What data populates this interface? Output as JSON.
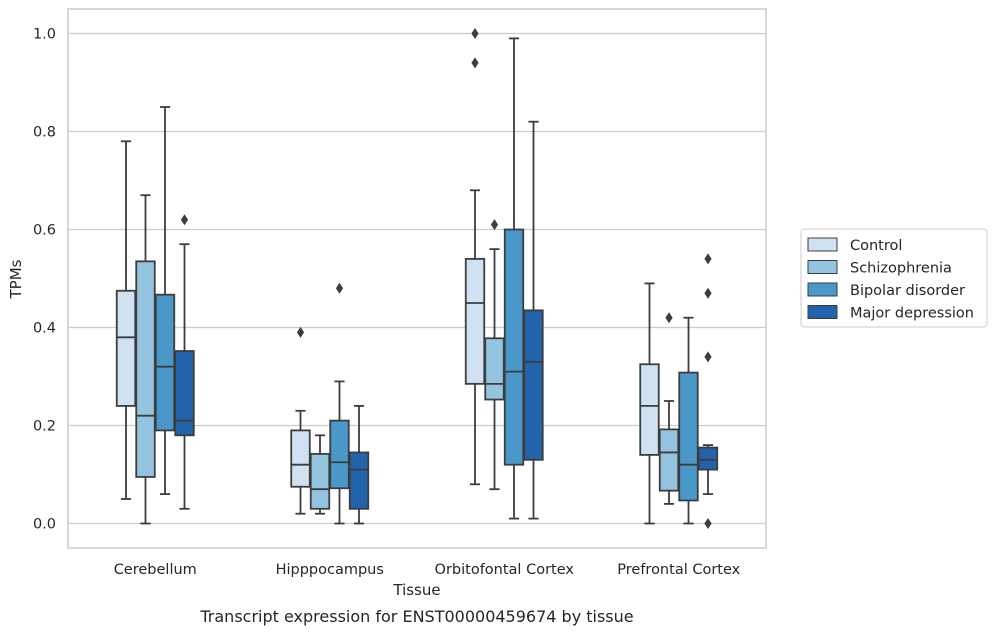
{
  "chart_data": {
    "type": "box",
    "title": "",
    "caption": "Transcript expression for ENST00000459674 by tissue",
    "xlabel": "Tissue",
    "ylabel": "TPMs",
    "ylim": [
      -0.05,
      1.05
    ],
    "yticks": [
      "0.0",
      "0.2",
      "0.4",
      "0.6",
      "0.8",
      "1.0"
    ],
    "grid": "horizontal",
    "legend_position": "right",
    "categories": [
      "Cerebellum",
      "Hipppocampus",
      "Orbitofontal Cortex",
      "Prefrontal Cortex"
    ],
    "series": [
      {
        "name": "Control",
        "color": "#d0e1f2",
        "boxes": [
          {
            "whisker_low": 0.05,
            "q1": 0.24,
            "median": 0.38,
            "q3": 0.475,
            "whisker_high": 0.78,
            "outliers": []
          },
          {
            "whisker_low": 0.02,
            "q1": 0.075,
            "median": 0.12,
            "q3": 0.19,
            "whisker_high": 0.23,
            "outliers": [
              0.39
            ]
          },
          {
            "whisker_low": 0.08,
            "q1": 0.285,
            "median": 0.45,
            "q3": 0.54,
            "whisker_high": 0.68,
            "outliers": [
              0.94,
              1.0
            ]
          },
          {
            "whisker_low": 0.0,
            "q1": 0.14,
            "median": 0.24,
            "q3": 0.325,
            "whisker_high": 0.49,
            "outliers": []
          }
        ]
      },
      {
        "name": "Schizophrenia",
        "color": "#94c4df",
        "boxes": [
          {
            "whisker_low": 0.0,
            "q1": 0.095,
            "median": 0.22,
            "q3": 0.535,
            "whisker_high": 0.67,
            "outliers": []
          },
          {
            "whisker_low": 0.02,
            "q1": 0.03,
            "median": 0.07,
            "q3": 0.142,
            "whisker_high": 0.18,
            "outliers": []
          },
          {
            "whisker_low": 0.07,
            "q1": 0.253,
            "median": 0.285,
            "q3": 0.378,
            "whisker_high": 0.56,
            "outliers": [
              0.61
            ]
          },
          {
            "whisker_low": 0.04,
            "q1": 0.067,
            "median": 0.145,
            "q3": 0.192,
            "whisker_high": 0.25,
            "outliers": [
              0.42
            ]
          }
        ]
      },
      {
        "name": "Bipolar disorder",
        "color": "#4a98c9",
        "boxes": [
          {
            "whisker_low": 0.06,
            "q1": 0.19,
            "median": 0.32,
            "q3": 0.467,
            "whisker_high": 0.85,
            "outliers": []
          },
          {
            "whisker_low": 0.0,
            "q1": 0.072,
            "median": 0.125,
            "q3": 0.21,
            "whisker_high": 0.29,
            "outliers": [
              0.48
            ]
          },
          {
            "whisker_low": 0.01,
            "q1": 0.12,
            "median": 0.31,
            "q3": 0.6,
            "whisker_high": 0.99,
            "outliers": []
          },
          {
            "whisker_low": 0.0,
            "q1": 0.047,
            "median": 0.12,
            "q3": 0.308,
            "whisker_high": 0.42,
            "outliers": []
          }
        ]
      },
      {
        "name": "Major depression",
        "color": "#2164ab",
        "boxes": [
          {
            "whisker_low": 0.03,
            "q1": 0.18,
            "median": 0.21,
            "q3": 0.352,
            "whisker_high": 0.57,
            "outliers": [
              0.62
            ]
          },
          {
            "whisker_low": 0.0,
            "q1": 0.03,
            "median": 0.11,
            "q3": 0.145,
            "whisker_high": 0.24,
            "outliers": []
          },
          {
            "whisker_low": 0.01,
            "q1": 0.13,
            "median": 0.33,
            "q3": 0.435,
            "whisker_high": 0.82,
            "outliers": []
          },
          {
            "whisker_low": 0.06,
            "q1": 0.11,
            "median": 0.13,
            "q3": 0.155,
            "whisker_high": 0.16,
            "outliers": [
              0.0,
              0.34,
              0.47,
              0.54
            ]
          }
        ]
      }
    ]
  },
  "colors": {
    "line": "#3d3d3d",
    "grid": "#cccccc",
    "frame": "#cccccc"
  }
}
